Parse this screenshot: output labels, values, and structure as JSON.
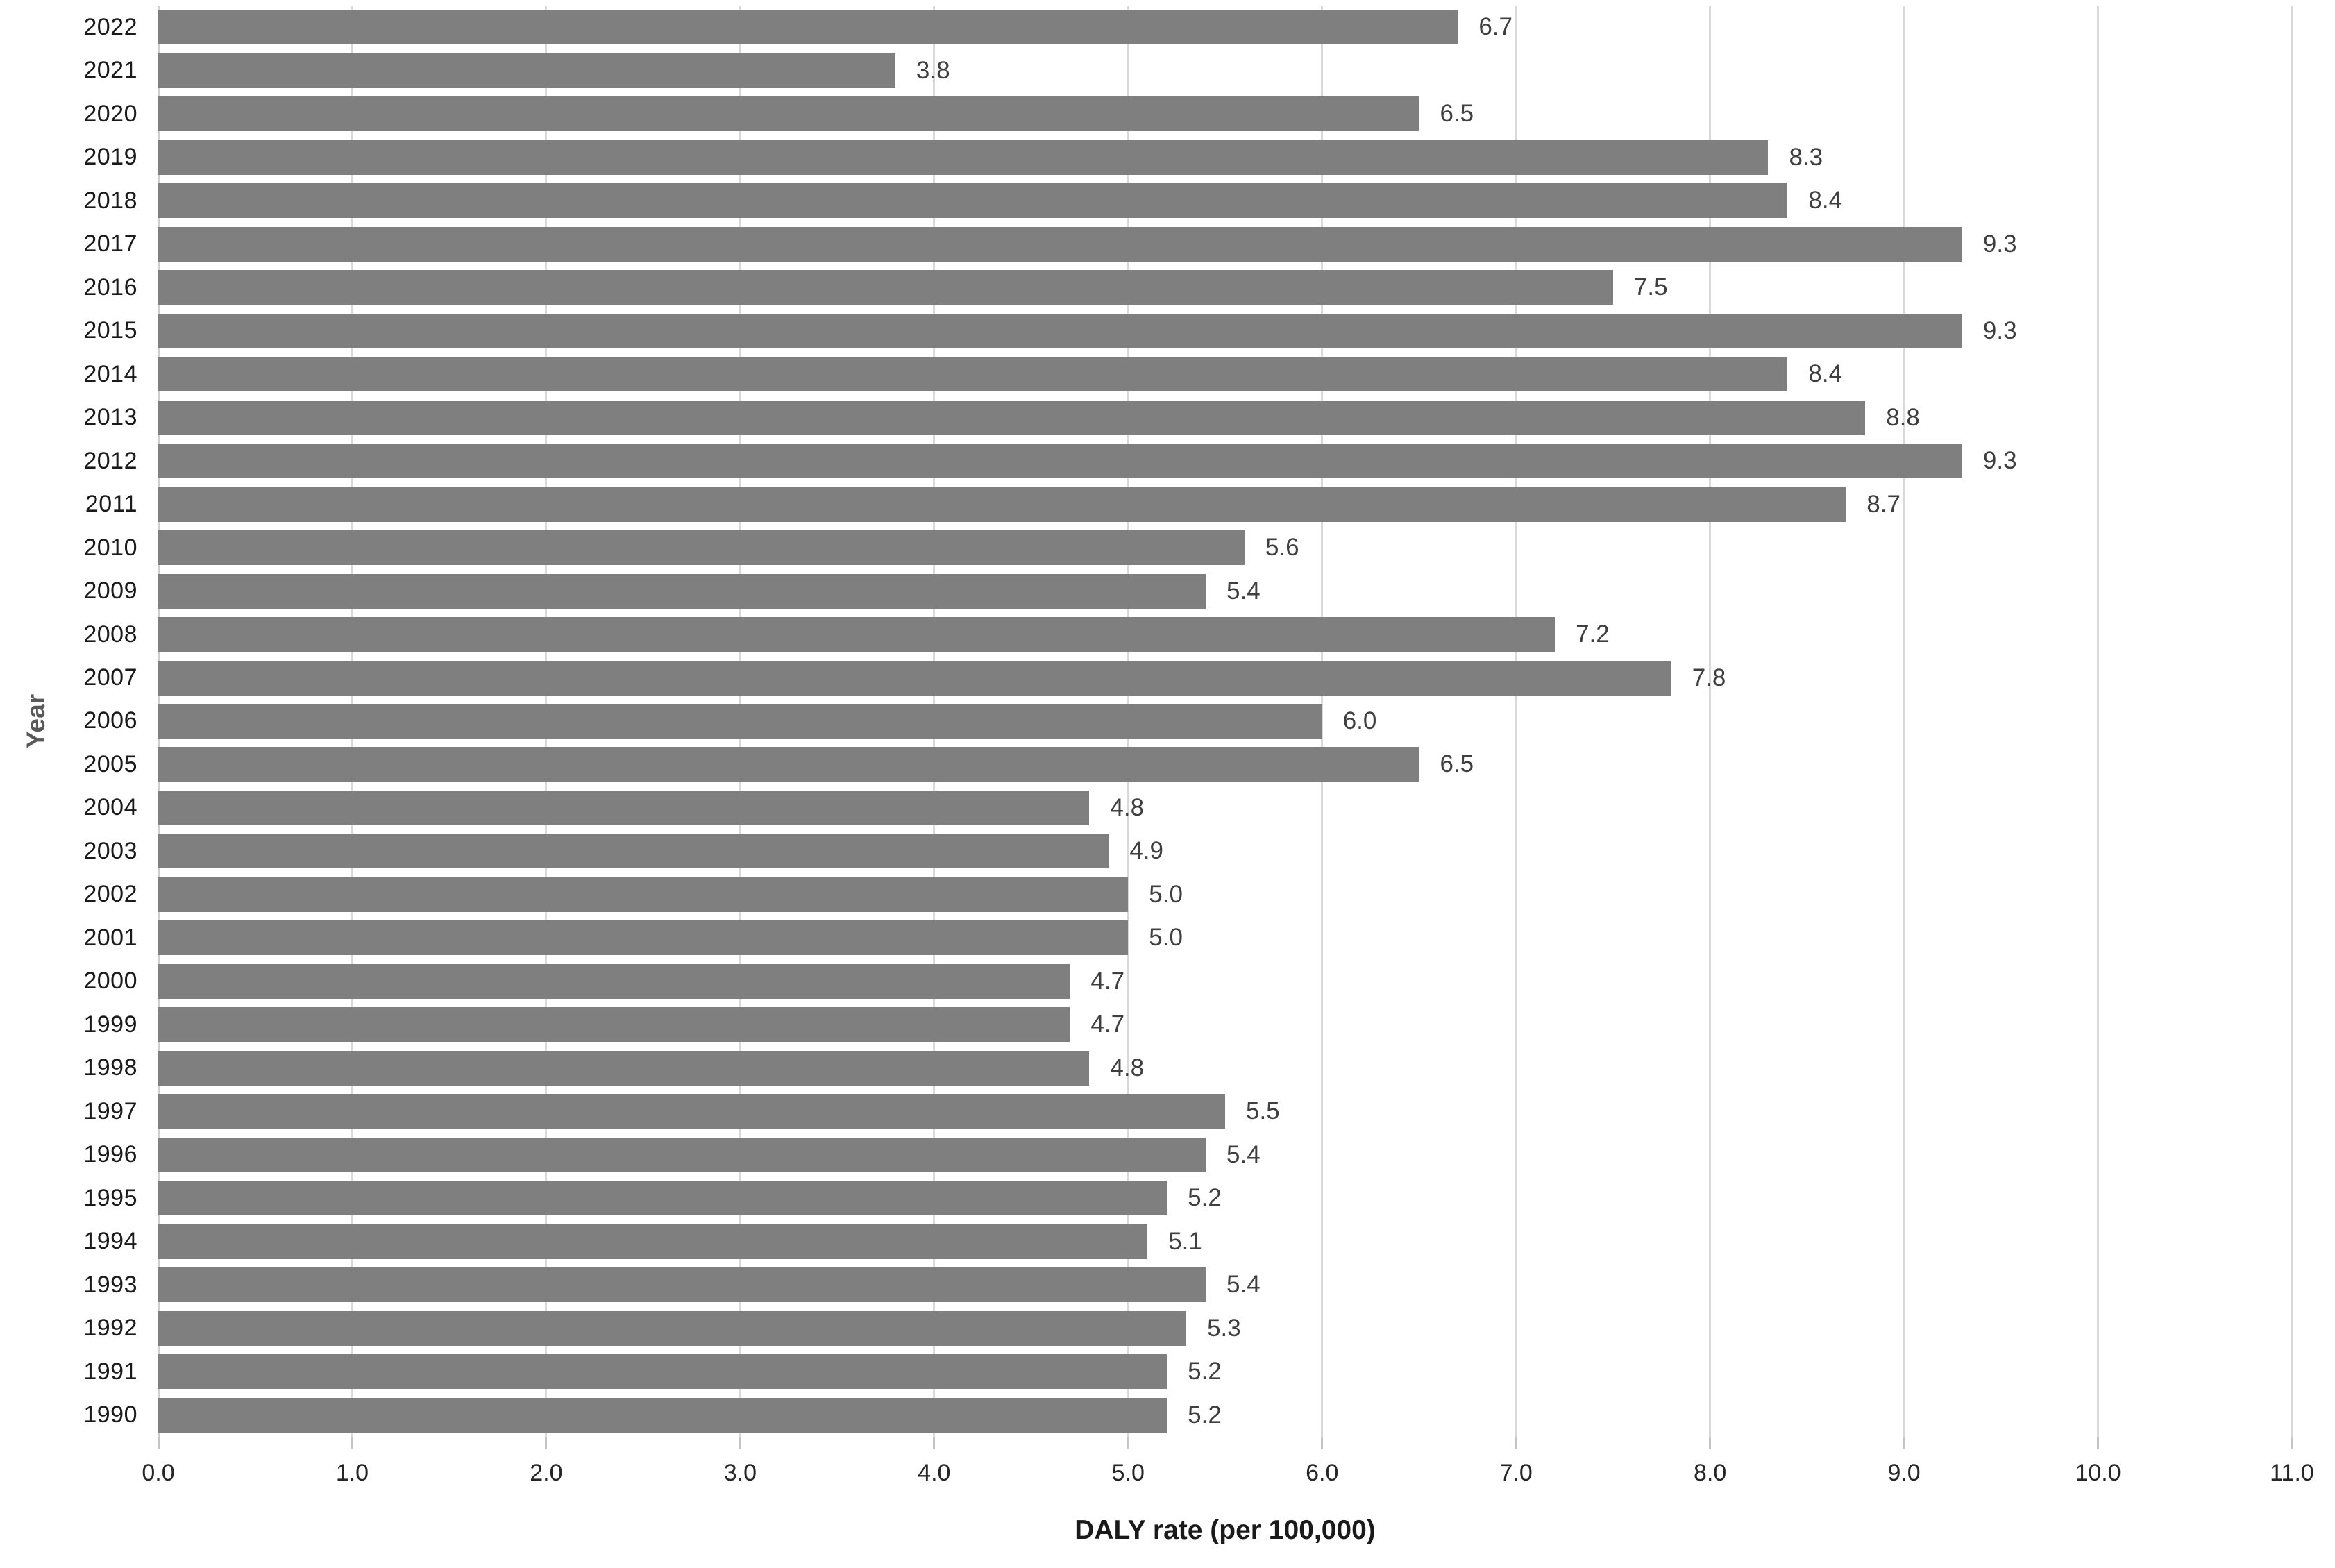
{
  "chart_data": {
    "type": "bar",
    "orientation": "horizontal",
    "title": "",
    "xlabel": "DALY rate (per 100,000)",
    "ylabel": "Year",
    "xlim": [
      0.0,
      11.0
    ],
    "x_tick_labels": [
      "0.0",
      "1.0",
      "2.0",
      "3.0",
      "4.0",
      "5.0",
      "6.0",
      "7.0",
      "8.0",
      "9.0",
      "10.0",
      "11.0"
    ],
    "grid": true,
    "legend_position": "none",
    "bar_color": "#7f7f7f",
    "gridline_color": "#d9d9d9",
    "categories": [
      "2022",
      "2021",
      "2020",
      "2019",
      "2018",
      "2017",
      "2016",
      "2015",
      "2014",
      "2013",
      "2012",
      "2011",
      "2010",
      "2009",
      "2008",
      "2007",
      "2006",
      "2005",
      "2004",
      "2003",
      "2002",
      "2001",
      "2000",
      "1999",
      "1998",
      "1997",
      "1996",
      "1995",
      "1994",
      "1993",
      "1992",
      "1991",
      "1990"
    ],
    "values": [
      6.7,
      3.8,
      6.5,
      8.3,
      8.4,
      9.3,
      7.5,
      9.3,
      8.4,
      8.8,
      9.3,
      8.7,
      5.6,
      5.4,
      7.2,
      7.8,
      6.0,
      6.5,
      4.8,
      4.9,
      5.0,
      5.0,
      4.7,
      4.7,
      4.8,
      5.5,
      5.4,
      5.2,
      5.1,
      5.4,
      5.3,
      5.2,
      5.2
    ],
    "value_labels": [
      "6.7",
      "3.8",
      "6.5",
      "8.3",
      "8.4",
      "9.3",
      "7.5",
      "9.3",
      "8.4",
      "8.8",
      "9.3",
      "8.7",
      "5.6",
      "5.4",
      "7.2",
      "7.8",
      "6.0",
      "6.5",
      "4.8",
      "4.9",
      "5.0",
      "5.0",
      "4.7",
      "4.7",
      "4.8",
      "5.5",
      "5.4",
      "5.2",
      "5.1",
      "5.4",
      "5.3",
      "5.2",
      "5.2"
    ]
  }
}
